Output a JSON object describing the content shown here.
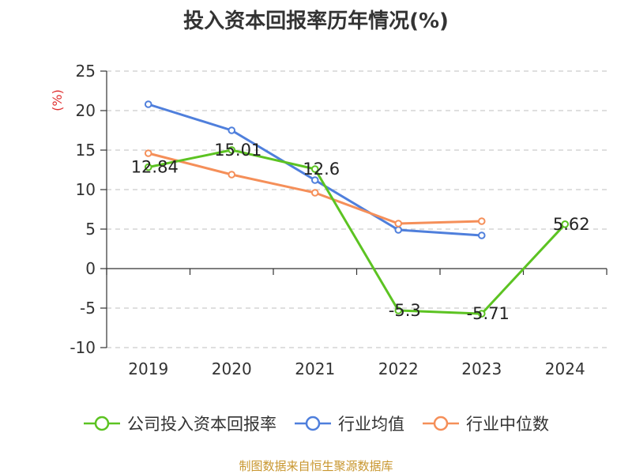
{
  "chart_data": {
    "type": "line",
    "title": "投入资本回报率历年情况(%)",
    "ylabel": "(%)",
    "categories": [
      "2019",
      "2020",
      "2021",
      "2022",
      "2023",
      "2024"
    ],
    "ylim": [
      -10,
      25
    ],
    "yticks": [
      25,
      20,
      15,
      10,
      5,
      0,
      -5,
      -10
    ],
    "grid": true,
    "legend_position": "bottom",
    "series": [
      {
        "name": "公司投入资本回报率",
        "color": "#5cc322",
        "values": [
          12.84,
          15.01,
          12.6,
          -5.3,
          -5.71,
          5.62
        ],
        "labels": [
          "12.84",
          "15.01",
          "12.6",
          "-5.3",
          "-5.71",
          "5.62"
        ]
      },
      {
        "name": "行业均值",
        "color": "#4f7fdc",
        "values": [
          20.8,
          17.5,
          11.2,
          4.9,
          4.2,
          null
        ]
      },
      {
        "name": "行业中位数",
        "color": "#f58f59",
        "values": [
          14.6,
          11.9,
          9.6,
          5.7,
          6.0,
          null
        ]
      }
    ]
  },
  "source": "制图数据来自恒生聚源数据库"
}
